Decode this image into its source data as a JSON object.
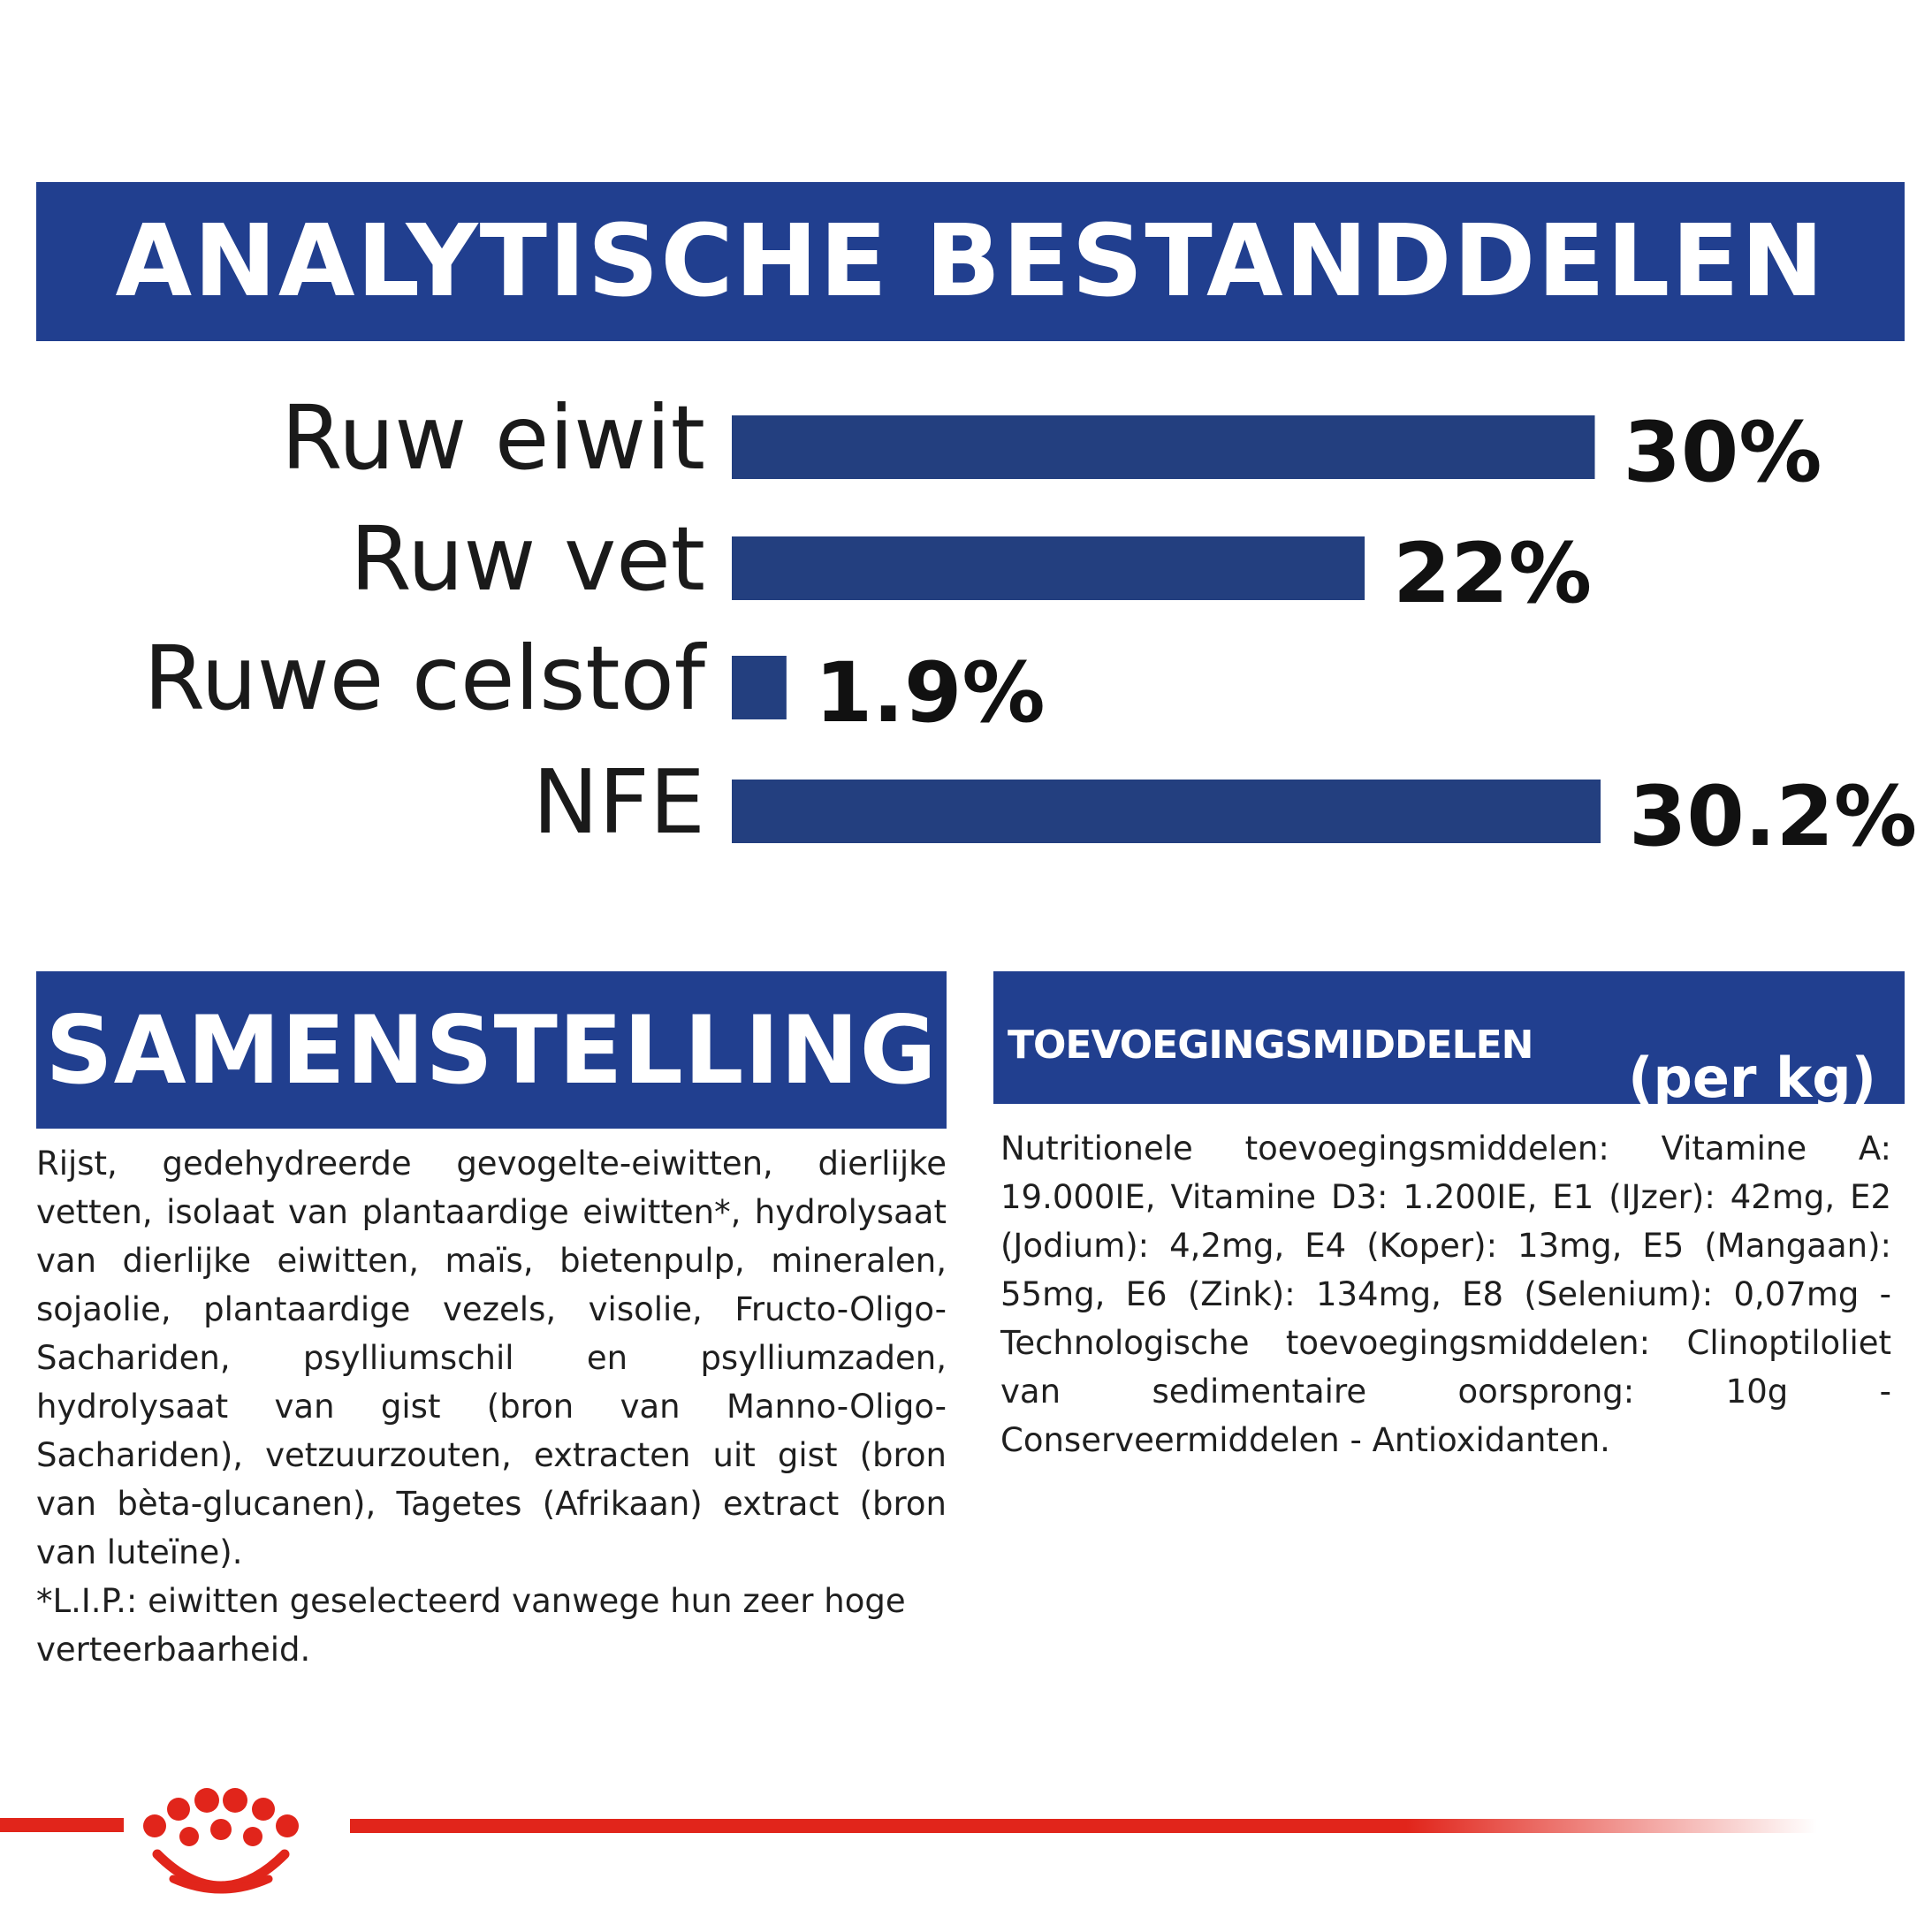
{
  "colors": {
    "navy": "#213f8f",
    "bar": "#233f7f",
    "brand_red": "#e1251b"
  },
  "header": {
    "title": "ANALYTISCHE BESTANDDELEN"
  },
  "chart_data": {
    "type": "bar",
    "orientation": "horizontal",
    "title": "ANALYTISCHE BESTANDDELEN",
    "categories": [
      "Ruw eiwit",
      "Ruw vet",
      "Ruwe celstof",
      "NFE"
    ],
    "values": [
      30,
      22,
      1.9,
      30.2
    ],
    "value_labels": [
      "30%",
      "22%",
      "1.9%",
      "30.2%"
    ],
    "unit": "%",
    "xlim": [
      0,
      30.2
    ],
    "grid": false,
    "legend": "none"
  },
  "composition": {
    "title": "SAMENSTELLING",
    "text": "Rijst, gedehydreerde gevogelte-eiwitten, dierlijke vetten, isolaat van plantaardige eiwitten*, hydrolysaat van dierlijke eiwitten, maïs, bietenpulp, mineralen, sojaolie, plantaardige vezels, visolie, Fructo-Oligo-Sachariden, psylliumschil en psylliumzaden, hydrolysaat van gist (bron van Manno-Oligo-Sachariden), vetzuurzouten, extracten uit gist (bron van bèta-glucanen), Tagetes (Afrikaan) extract (bron van luteïne).",
    "footnote": "*L.I.P.: eiwitten geselecteerd vanwege hun zeer hoge verteerbaarheid."
  },
  "additives": {
    "title": "TOEVOEGINGSMIDDELEN",
    "unit": "(per kg)",
    "text": "Nutritionele toevoegingsmiddelen: Vitamine A: 19.000IE, Vitamine D3: 1.200IE, E1 (IJzer): 42mg, E2 (Jodium): 4,2mg, E4 (Koper): 13mg, E5 (Mangaan): 55mg, E6 (Zink): 134mg, E8 (Selenium): 0,07mg - Technologische toevoegingsmiddelen: Clinoptiloliet van sedimentaire oorsprong: 10g - Conserveermiddelen - Antioxidanten."
  },
  "footer": {
    "logo_icon": "crown-logo-icon"
  }
}
